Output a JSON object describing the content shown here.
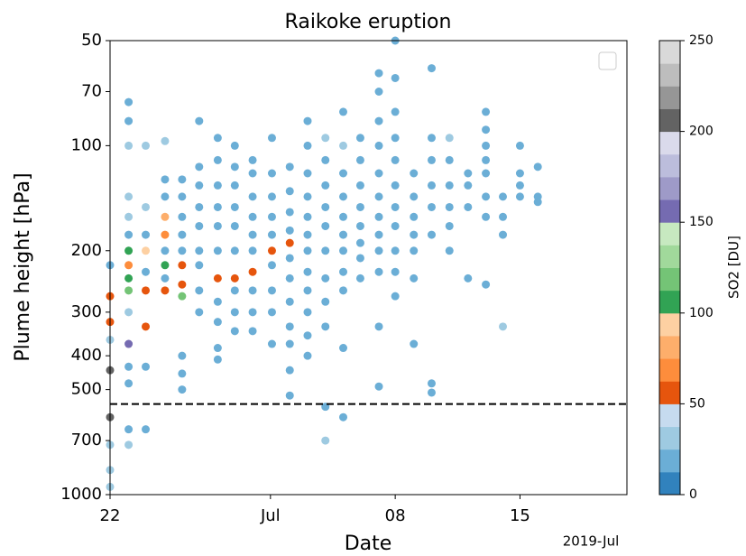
{
  "chart_data": {
    "type": "scatter",
    "title": "Raikoke eruption",
    "xlabel": "Date",
    "ylabel": "Plume height [hPa]",
    "x_offset_label": "2019-Jul",
    "xlim": [
      "2019-06-22T00:00",
      "2019-07-21T00:00"
    ],
    "xticks": [
      {
        "value": "2019-06-22T00:00",
        "label": "22"
      },
      {
        "value": "2019-07-01T00:00",
        "label": "Jul"
      },
      {
        "value": "2019-07-08T00:00",
        "label": "08"
      },
      {
        "value": "2019-07-15T00:00",
        "label": "15"
      }
    ],
    "yscale": "log",
    "ylim": [
      1000,
      50
    ],
    "yticks": [
      50,
      70,
      100,
      200,
      300,
      400,
      500,
      700,
      1000
    ],
    "hline": 550,
    "colorbar": {
      "label": "SO2 [DU]",
      "clim": [
        0,
        250
      ],
      "ticks": [
        0,
        50,
        100,
        150,
        200,
        250
      ],
      "colormap": [
        "#3182bd",
        "#6baed6",
        "#9ecae1",
        "#c6dbef",
        "#e6550d",
        "#fd8d3c",
        "#fdae6b",
        "#fdd0a2",
        "#31a354",
        "#74c476",
        "#a1d99b",
        "#c7e9c0",
        "#756bb1",
        "#9e9ac8",
        "#bcbddc",
        "#dadaeb",
        "#636363",
        "#969696",
        "#bdbdbd",
        "#d9d9d9"
      ]
    },
    "groups": [
      {
        "x": "2019-06-22T00:00",
        "y": [
          220,
          270,
          320,
          360,
          440,
          600,
          720,
          850,
          950
        ],
        "c": [
          20,
          60,
          55,
          30,
          210,
          210,
          30,
          30,
          30
        ]
      },
      {
        "x": "2019-06-23T01:00",
        "y": [
          75,
          85,
          100,
          140,
          160,
          180,
          200,
          220,
          240,
          260,
          300,
          370,
          430,
          480,
          650,
          720
        ],
        "c": [
          20,
          20,
          30,
          30,
          30,
          20,
          105,
          70,
          110,
          120,
          30,
          160,
          20,
          20,
          20,
          30
        ]
      },
      {
        "x": "2019-06-24T00:00",
        "y": [
          100,
          150,
          180,
          200,
          230,
          260,
          330,
          430,
          650
        ],
        "c": [
          35,
          30,
          20,
          90,
          20,
          60,
          55,
          20,
          20
        ]
      },
      {
        "x": "2019-06-25T02:00",
        "y": [
          97,
          125,
          140,
          160,
          180,
          200,
          220,
          240,
          260
        ],
        "c": [
          30,
          20,
          20,
          80,
          65,
          20,
          110,
          20,
          60
        ]
      },
      {
        "x": "2019-06-26T01:00",
        "y": [
          125,
          140,
          160,
          180,
          200,
          220,
          250,
          270,
          400,
          450,
          500
        ],
        "c": [
          20,
          20,
          20,
          20,
          20,
          55,
          60,
          120,
          20,
          20,
          20
        ]
      },
      {
        "x": "2019-06-27T00:00",
        "y": [
          85,
          115,
          130,
          150,
          170,
          200,
          220,
          260,
          300
        ],
        "c": [
          20,
          20,
          20,
          20,
          20,
          20,
          20,
          20,
          20
        ]
      },
      {
        "x": "2019-06-28T01:00",
        "y": [
          95,
          110,
          130,
          150,
          170,
          200,
          240,
          280,
          320,
          380,
          410
        ],
        "c": [
          20,
          20,
          20,
          20,
          20,
          20,
          55,
          20,
          20,
          20,
          20
        ]
      },
      {
        "x": "2019-06-29T00:00",
        "y": [
          100,
          115,
          130,
          150,
          170,
          200,
          240,
          260,
          300,
          340
        ],
        "c": [
          20,
          20,
          20,
          20,
          20,
          20,
          55,
          20,
          20,
          20
        ]
      },
      {
        "x": "2019-06-30T00:00",
        "y": [
          110,
          120,
          140,
          160,
          180,
          200,
          230,
          260,
          300,
          340
        ],
        "c": [
          20,
          20,
          20,
          20,
          20,
          20,
          55,
          20,
          20,
          20
        ]
      },
      {
        "x": "2019-07-01T02:00",
        "y": [
          95,
          120,
          140,
          160,
          180,
          200,
          220,
          260,
          300,
          370
        ],
        "c": [
          20,
          20,
          20,
          20,
          20,
          55,
          20,
          20,
          20,
          20
        ]
      },
      {
        "x": "2019-07-02T02:00",
        "y": [
          115,
          135,
          155,
          175,
          190,
          210,
          240,
          280,
          330,
          370,
          440,
          520
        ],
        "c": [
          20,
          20,
          20,
          20,
          55,
          20,
          20,
          20,
          20,
          20,
          20,
          20
        ]
      },
      {
        "x": "2019-07-03T02:00",
        "y": [
          85,
          100,
          120,
          140,
          160,
          180,
          200,
          230,
          260,
          300,
          350,
          400
        ],
        "c": [
          20,
          20,
          20,
          20,
          20,
          20,
          20,
          20,
          20,
          20,
          20,
          20
        ]
      },
      {
        "x": "2019-07-04T02:00",
        "y": [
          95,
          110,
          130,
          150,
          170,
          200,
          240,
          280,
          330,
          560,
          700
        ],
        "c": [
          30,
          20,
          20,
          20,
          20,
          20,
          20,
          20,
          20,
          20,
          30
        ]
      },
      {
        "x": "2019-07-05T02:00",
        "y": [
          80,
          100,
          120,
          140,
          160,
          180,
          200,
          230,
          260,
          380,
          600
        ],
        "c": [
          20,
          30,
          20,
          20,
          20,
          20,
          20,
          20,
          20,
          20,
          20
        ]
      },
      {
        "x": "2019-07-06T01:00",
        "y": [
          95,
          110,
          130,
          150,
          170,
          190,
          210,
          240
        ],
        "c": [
          20,
          20,
          20,
          20,
          20,
          20,
          20,
          20
        ]
      },
      {
        "x": "2019-07-07T02:00",
        "y": [
          62,
          70,
          85,
          100,
          120,
          140,
          160,
          180,
          200,
          230,
          330,
          490
        ],
        "c": [
          20,
          20,
          20,
          20,
          20,
          20,
          20,
          20,
          20,
          20,
          20,
          20
        ]
      },
      {
        "x": "2019-07-08T00:00",
        "y": [
          50,
          64,
          80,
          95,
          110,
          130,
          150,
          170,
          200,
          230,
          270
        ],
        "c": [
          20,
          20,
          20,
          20,
          20,
          20,
          20,
          20,
          20,
          20,
          20
        ]
      },
      {
        "x": "2019-07-09T01:00",
        "y": [
          120,
          140,
          160,
          180,
          200,
          240,
          370
        ],
        "c": [
          20,
          20,
          20,
          20,
          20,
          20,
          20
        ]
      },
      {
        "x": "2019-07-10T01:00",
        "y": [
          60,
          95,
          110,
          130,
          150,
          180,
          480,
          510
        ],
        "c": [
          20,
          20,
          20,
          20,
          20,
          20,
          20,
          20
        ]
      },
      {
        "x": "2019-07-11T01:00",
        "y": [
          95,
          110,
          130,
          150,
          170,
          200
        ],
        "c": [
          30,
          20,
          20,
          20,
          20,
          20
        ]
      },
      {
        "x": "2019-07-12T02:00",
        "y": [
          120,
          130,
          150,
          240
        ],
        "c": [
          20,
          20,
          20,
          20
        ]
      },
      {
        "x": "2019-07-13T02:00",
        "y": [
          80,
          90,
          100,
          110,
          120,
          140,
          160,
          250
        ],
        "c": [
          20,
          20,
          20,
          20,
          20,
          20,
          20,
          20
        ]
      },
      {
        "x": "2019-07-14T01:00",
        "y": [
          140,
          160,
          180,
          330
        ],
        "c": [
          20,
          20,
          20,
          35
        ]
      },
      {
        "x": "2019-07-15T00:00",
        "y": [
          100,
          120,
          130,
          140
        ],
        "c": [
          20,
          20,
          20,
          20
        ]
      },
      {
        "x": "2019-07-16T00:00",
        "y": [
          115,
          140,
          145
        ],
        "c": [
          20,
          20,
          20
        ]
      }
    ]
  }
}
